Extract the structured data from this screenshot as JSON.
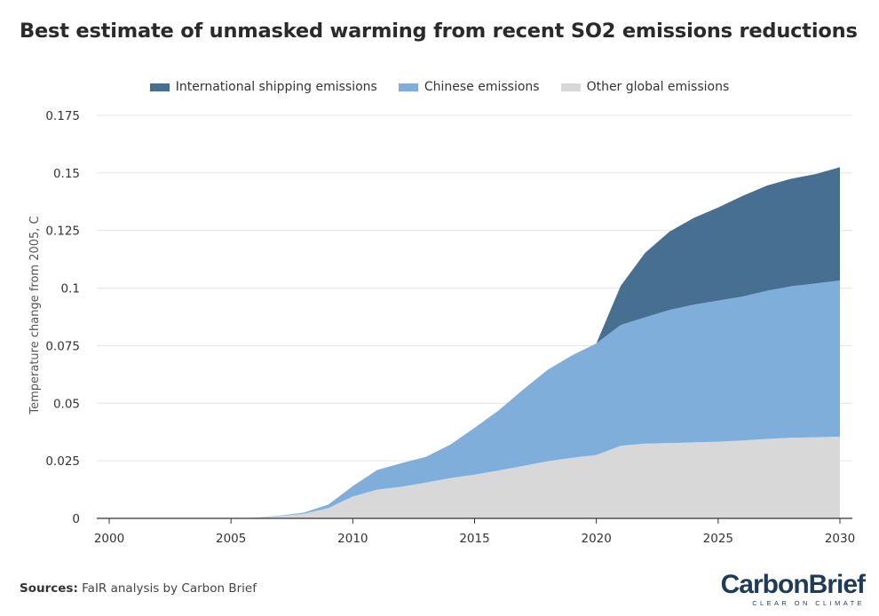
{
  "title": "Best estimate of unmasked warming from recent SO2 emissions reductions",
  "source": {
    "label": "Sources:",
    "text": "FaIR analysis by Carbon Brief"
  },
  "logo": {
    "name": "CarbonBrief",
    "tagline": "CLEAR ON CLIMATE"
  },
  "colors": {
    "shipping": "#466f91",
    "chinese": "#80aedb",
    "other": "#d8d8d8",
    "grid": "#e3e3e3",
    "axis": "#333333"
  },
  "chart_data": {
    "type": "area",
    "stacked": true,
    "title": "Best estimate of unmasked warming from recent SO2 emissions reductions",
    "xlabel": "",
    "ylabel": "Temperature change from 2005, C",
    "xlim": [
      2000,
      2030
    ],
    "ylim": [
      0,
      0.175
    ],
    "xticks": [
      2000,
      2005,
      2010,
      2015,
      2020,
      2025,
      2030
    ],
    "yticks": [
      0,
      0.025,
      0.05,
      0.075,
      0.1,
      0.125,
      0.15,
      0.175
    ],
    "ytick_labels": [
      "0",
      "0.025",
      "0.05",
      "0.075",
      "0.1",
      "0.125",
      "0.15",
      "0.175"
    ],
    "legend_position": "top-center",
    "x": [
      2000,
      2001,
      2002,
      2003,
      2004,
      2005,
      2006,
      2007,
      2008,
      2009,
      2010,
      2011,
      2012,
      2013,
      2014,
      2015,
      2016,
      2017,
      2018,
      2019,
      2020,
      2021,
      2022,
      2023,
      2024,
      2025,
      2026,
      2027,
      2028,
      2029,
      2030
    ],
    "series": [
      {
        "name": "Other global emissions",
        "key": "other",
        "values": [
          0,
          0,
          0,
          0,
          0,
          0,
          0.0002,
          0.001,
          0.002,
          0.0045,
          0.0095,
          0.0125,
          0.0138,
          0.0155,
          0.0175,
          0.019,
          0.0208,
          0.0228,
          0.0248,
          0.0263,
          0.0275,
          0.0315,
          0.0325,
          0.0327,
          0.033,
          0.0333,
          0.0338,
          0.0345,
          0.035,
          0.0352,
          0.0355
        ]
      },
      {
        "name": "Chinese emissions",
        "key": "chinese",
        "values": [
          0,
          0,
          0,
          0,
          0,
          0,
          0.0001,
          0.0002,
          0.0005,
          0.0015,
          0.0045,
          0.0085,
          0.0102,
          0.0112,
          0.0145,
          0.0203,
          0.0262,
          0.0332,
          0.0397,
          0.0445,
          0.0485,
          0.0525,
          0.0548,
          0.0578,
          0.0598,
          0.0613,
          0.0625,
          0.0643,
          0.0658,
          0.0668,
          0.0678
        ]
      },
      {
        "name": "International shipping emissions",
        "key": "shipping",
        "values": [
          0,
          0,
          0,
          0,
          0,
          0,
          0,
          0,
          0,
          0,
          0,
          0,
          0,
          0,
          0,
          0,
          0,
          0,
          0,
          0,
          0,
          0.017,
          0.028,
          0.034,
          0.0377,
          0.0404,
          0.0437,
          0.0457,
          0.0467,
          0.0475,
          0.0492
        ]
      }
    ],
    "legend": [
      {
        "name": "International shipping emissions",
        "key": "shipping"
      },
      {
        "name": "Chinese emissions",
        "key": "chinese"
      },
      {
        "name": "Other global emissions",
        "key": "other"
      }
    ]
  }
}
